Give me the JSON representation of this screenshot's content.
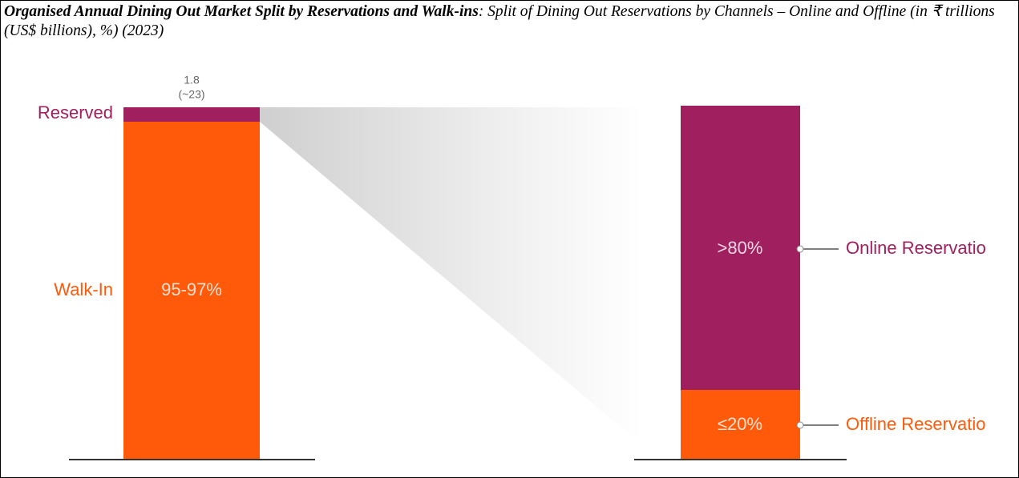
{
  "header": {
    "title_bold": "Organised Annual Dining Out Market Split by Reservations and Walk-ins",
    "title_rest": ": Split of Dining Out Reservations by Channels – Online and Offline (in ₹ trillions (US$ billions), %) (2023)"
  },
  "left_bar": {
    "top_value": "1.8",
    "top_value_usd": "(~23)",
    "reserved_label": "Reserved",
    "walkin_label": "Walk-In",
    "walkin_share": "95-97%"
  },
  "right_bar": {
    "online_share": ">80%",
    "offline_share": "≤20%",
    "online_label": "Online Reservatio",
    "offline_label": "Offline Reservatio"
  }
}
